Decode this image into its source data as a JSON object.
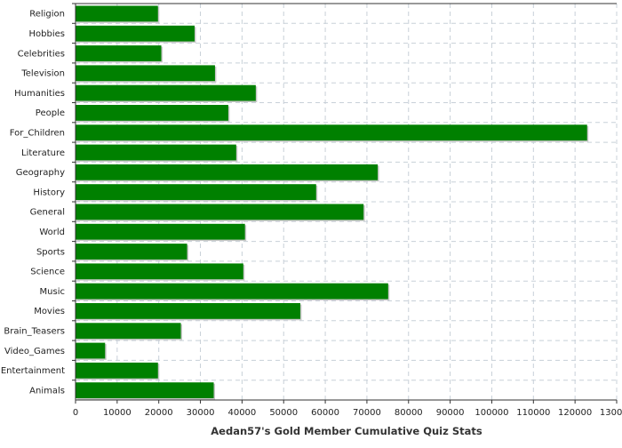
{
  "chart_data": {
    "type": "bar",
    "orientation": "horizontal",
    "title": "",
    "xlabel": "Aedan57's Gold Member Cumulative Quiz Stats",
    "ylabel": "",
    "xlim": [
      0,
      130000
    ],
    "xticks": [
      0,
      10000,
      20000,
      30000,
      40000,
      50000,
      60000,
      70000,
      80000,
      90000,
      100000,
      110000,
      120000,
      130000
    ],
    "grid": true,
    "bar_color": "#008000",
    "categories": [
      "Religion",
      "Hobbies",
      "Celebrities",
      "Television",
      "Humanities",
      "People",
      "For_Children",
      "Literature",
      "Geography",
      "History",
      "General",
      "World",
      "Sports",
      "Science",
      "Music",
      "Movies",
      "Brain_Teasers",
      "Video_Games",
      "Entertainment",
      "Animals"
    ],
    "values": [
      19800,
      28600,
      20600,
      33500,
      43300,
      36700,
      122900,
      38600,
      72600,
      57800,
      69200,
      40700,
      26800,
      40300,
      75100,
      54000,
      25300,
      7100,
      19800,
      33200
    ]
  }
}
